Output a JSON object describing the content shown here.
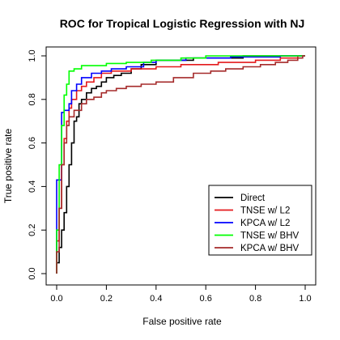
{
  "chart_data": {
    "type": "line",
    "title": "ROC for Tropical Logistic Regression with NJ",
    "xlabel": "False positive rate",
    "ylabel": "True positive rate",
    "xlim": [
      0,
      1
    ],
    "ylim": [
      0,
      1
    ],
    "xticks": [
      "0.0",
      "0.2",
      "0.4",
      "0.6",
      "0.8",
      "1.0"
    ],
    "yticks": [
      "0.0",
      "0.2",
      "0.4",
      "0.6",
      "0.8",
      "1.0"
    ],
    "grid": false,
    "legend_position": "bottom-right",
    "series": [
      {
        "name": "Direct",
        "color": "#000000",
        "points": [
          [
            0,
            0
          ],
          [
            0,
            0.05
          ],
          [
            0.01,
            0.05
          ],
          [
            0.01,
            0.12
          ],
          [
            0.02,
            0.12
          ],
          [
            0.02,
            0.2
          ],
          [
            0.03,
            0.2
          ],
          [
            0.03,
            0.28
          ],
          [
            0.04,
            0.28
          ],
          [
            0.04,
            0.4
          ],
          [
            0.05,
            0.4
          ],
          [
            0.05,
            0.5
          ],
          [
            0.06,
            0.5
          ],
          [
            0.06,
            0.6
          ],
          [
            0.07,
            0.6
          ],
          [
            0.07,
            0.7
          ],
          [
            0.08,
            0.7
          ],
          [
            0.08,
            0.72
          ],
          [
            0.09,
            0.72
          ],
          [
            0.09,
            0.78
          ],
          [
            0.1,
            0.78
          ],
          [
            0.1,
            0.8
          ],
          [
            0.12,
            0.8
          ],
          [
            0.12,
            0.83
          ],
          [
            0.14,
            0.83
          ],
          [
            0.14,
            0.85
          ],
          [
            0.16,
            0.85
          ],
          [
            0.16,
            0.86
          ],
          [
            0.18,
            0.86
          ],
          [
            0.18,
            0.88
          ],
          [
            0.2,
            0.88
          ],
          [
            0.2,
            0.9
          ],
          [
            0.23,
            0.9
          ],
          [
            0.23,
            0.91
          ],
          [
            0.26,
            0.91
          ],
          [
            0.26,
            0.92
          ],
          [
            0.3,
            0.92
          ],
          [
            0.3,
            0.94
          ],
          [
            0.34,
            0.94
          ],
          [
            0.34,
            0.96
          ],
          [
            0.4,
            0.96
          ],
          [
            0.4,
            0.98
          ],
          [
            0.55,
            0.98
          ],
          [
            0.55,
            0.99
          ],
          [
            0.75,
            0.99
          ],
          [
            0.75,
            1.0
          ],
          [
            1.0,
            1.0
          ]
        ]
      },
      {
        "name": "TNSE w/ L2",
        "color": "#e41a1c",
        "points": [
          [
            0,
            0
          ],
          [
            0,
            0.15
          ],
          [
            0.01,
            0.15
          ],
          [
            0.01,
            0.3
          ],
          [
            0.02,
            0.3
          ],
          [
            0.02,
            0.5
          ],
          [
            0.03,
            0.5
          ],
          [
            0.03,
            0.62
          ],
          [
            0.04,
            0.62
          ],
          [
            0.04,
            0.7
          ],
          [
            0.05,
            0.7
          ],
          [
            0.05,
            0.76
          ],
          [
            0.06,
            0.76
          ],
          [
            0.06,
            0.8
          ],
          [
            0.08,
            0.8
          ],
          [
            0.08,
            0.84
          ],
          [
            0.1,
            0.84
          ],
          [
            0.1,
            0.86
          ],
          [
            0.12,
            0.86
          ],
          [
            0.12,
            0.88
          ],
          [
            0.15,
            0.88
          ],
          [
            0.15,
            0.9
          ],
          [
            0.18,
            0.9
          ],
          [
            0.18,
            0.92
          ],
          [
            0.22,
            0.92
          ],
          [
            0.22,
            0.93
          ],
          [
            0.3,
            0.93
          ],
          [
            0.3,
            0.94
          ],
          [
            0.4,
            0.94
          ],
          [
            0.4,
            0.95
          ],
          [
            0.5,
            0.95
          ],
          [
            0.5,
            0.96
          ],
          [
            0.65,
            0.96
          ],
          [
            0.65,
            0.97
          ],
          [
            0.8,
            0.97
          ],
          [
            0.8,
            0.98
          ],
          [
            0.9,
            0.98
          ],
          [
            0.9,
            0.99
          ],
          [
            0.97,
            0.99
          ],
          [
            0.97,
            1.0
          ],
          [
            1.0,
            1.0
          ]
        ]
      },
      {
        "name": "KPCA w/ L2",
        "color": "#0000ff",
        "points": [
          [
            0,
            0
          ],
          [
            0,
            0.43
          ],
          [
            0.01,
            0.43
          ],
          [
            0.01,
            0.43
          ],
          [
            0.02,
            0.43
          ],
          [
            0.02,
            0.74
          ],
          [
            0.03,
            0.74
          ],
          [
            0.03,
            0.75
          ],
          [
            0.05,
            0.75
          ],
          [
            0.05,
            0.78
          ],
          [
            0.06,
            0.78
          ],
          [
            0.06,
            0.84
          ],
          [
            0.08,
            0.84
          ],
          [
            0.08,
            0.87
          ],
          [
            0.1,
            0.87
          ],
          [
            0.1,
            0.9
          ],
          [
            0.14,
            0.9
          ],
          [
            0.14,
            0.92
          ],
          [
            0.18,
            0.92
          ],
          [
            0.18,
            0.93
          ],
          [
            0.22,
            0.93
          ],
          [
            0.22,
            0.94
          ],
          [
            0.28,
            0.94
          ],
          [
            0.28,
            0.95
          ],
          [
            0.35,
            0.95
          ],
          [
            0.35,
            0.97
          ],
          [
            0.4,
            0.97
          ],
          [
            0.4,
            0.98
          ],
          [
            0.52,
            0.98
          ],
          [
            0.52,
            0.99
          ],
          [
            0.7,
            0.99
          ],
          [
            0.7,
            0.995
          ],
          [
            0.9,
            0.995
          ],
          [
            0.9,
            1.0
          ],
          [
            1.0,
            1.0
          ]
        ]
      },
      {
        "name": "TNSE w/ BHV",
        "color": "#00ff00",
        "points": [
          [
            0,
            0
          ],
          [
            0,
            0.2
          ],
          [
            0.01,
            0.2
          ],
          [
            0.01,
            0.5
          ],
          [
            0.02,
            0.5
          ],
          [
            0.02,
            0.68
          ],
          [
            0.03,
            0.68
          ],
          [
            0.03,
            0.82
          ],
          [
            0.04,
            0.82
          ],
          [
            0.04,
            0.87
          ],
          [
            0.05,
            0.87
          ],
          [
            0.05,
            0.93
          ],
          [
            0.07,
            0.93
          ],
          [
            0.07,
            0.94
          ],
          [
            0.1,
            0.94
          ],
          [
            0.1,
            0.955
          ],
          [
            0.2,
            0.955
          ],
          [
            0.2,
            0.965
          ],
          [
            0.28,
            0.965
          ],
          [
            0.28,
            0.97
          ],
          [
            0.38,
            0.97
          ],
          [
            0.38,
            0.98
          ],
          [
            0.5,
            0.98
          ],
          [
            0.5,
            0.99
          ],
          [
            0.6,
            0.99
          ],
          [
            0.6,
            1.0
          ],
          [
            1.0,
            1.0
          ]
        ]
      },
      {
        "name": "KPCA w/ BHV",
        "color": "#a52a2a",
        "points": [
          [
            0,
            0
          ],
          [
            0,
            0.1
          ],
          [
            0.01,
            0.1
          ],
          [
            0.01,
            0.3
          ],
          [
            0.02,
            0.3
          ],
          [
            0.02,
            0.5
          ],
          [
            0.03,
            0.5
          ],
          [
            0.03,
            0.6
          ],
          [
            0.04,
            0.6
          ],
          [
            0.04,
            0.68
          ],
          [
            0.05,
            0.68
          ],
          [
            0.05,
            0.72
          ],
          [
            0.07,
            0.72
          ],
          [
            0.07,
            0.75
          ],
          [
            0.1,
            0.75
          ],
          [
            0.1,
            0.78
          ],
          [
            0.12,
            0.78
          ],
          [
            0.12,
            0.8
          ],
          [
            0.15,
            0.8
          ],
          [
            0.15,
            0.81
          ],
          [
            0.18,
            0.81
          ],
          [
            0.18,
            0.83
          ],
          [
            0.2,
            0.83
          ],
          [
            0.2,
            0.84
          ],
          [
            0.24,
            0.84
          ],
          [
            0.24,
            0.85
          ],
          [
            0.28,
            0.85
          ],
          [
            0.28,
            0.86
          ],
          [
            0.34,
            0.86
          ],
          [
            0.34,
            0.87
          ],
          [
            0.4,
            0.87
          ],
          [
            0.4,
            0.88
          ],
          [
            0.47,
            0.88
          ],
          [
            0.47,
            0.9
          ],
          [
            0.55,
            0.9
          ],
          [
            0.55,
            0.92
          ],
          [
            0.62,
            0.92
          ],
          [
            0.62,
            0.93
          ],
          [
            0.68,
            0.93
          ],
          [
            0.68,
            0.94
          ],
          [
            0.75,
            0.94
          ],
          [
            0.75,
            0.95
          ],
          [
            0.82,
            0.95
          ],
          [
            0.82,
            0.96
          ],
          [
            0.88,
            0.96
          ],
          [
            0.88,
            0.97
          ],
          [
            0.93,
            0.97
          ],
          [
            0.93,
            0.98
          ],
          [
            0.97,
            0.98
          ],
          [
            0.97,
            0.99
          ],
          [
            0.99,
            0.99
          ],
          [
            0.99,
            1.0
          ],
          [
            1.0,
            1.0
          ]
        ]
      }
    ]
  }
}
